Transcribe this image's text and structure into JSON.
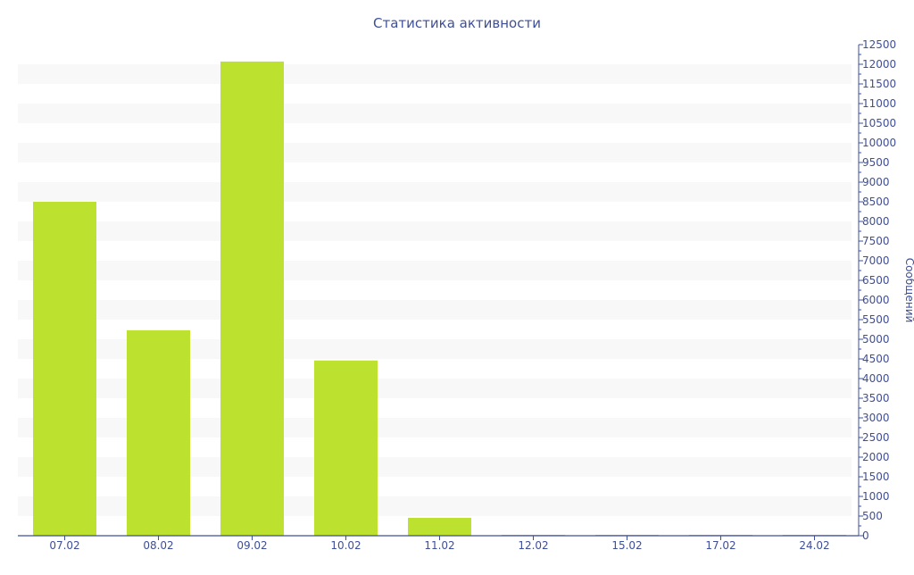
{
  "chart_data": {
    "type": "bar",
    "title": "Статистика активности",
    "ylabel": "Сообщений",
    "xlabel": "",
    "categories": [
      "07.02",
      "08.02",
      "09.02",
      "10.02",
      "11.02",
      "12.02",
      "15.02",
      "17.02",
      "24.02"
    ],
    "values": [
      8500,
      5230,
      12070,
      4460,
      455,
      20,
      20,
      20,
      20
    ],
    "ylim": [
      0,
      12500
    ],
    "ytick_step": 500,
    "y_axis_position": "right",
    "grid": "alternating horizontal bands",
    "colors": {
      "bar": "#bce12e",
      "axis": "#3e4f99",
      "band": "#f8f8f8"
    }
  }
}
